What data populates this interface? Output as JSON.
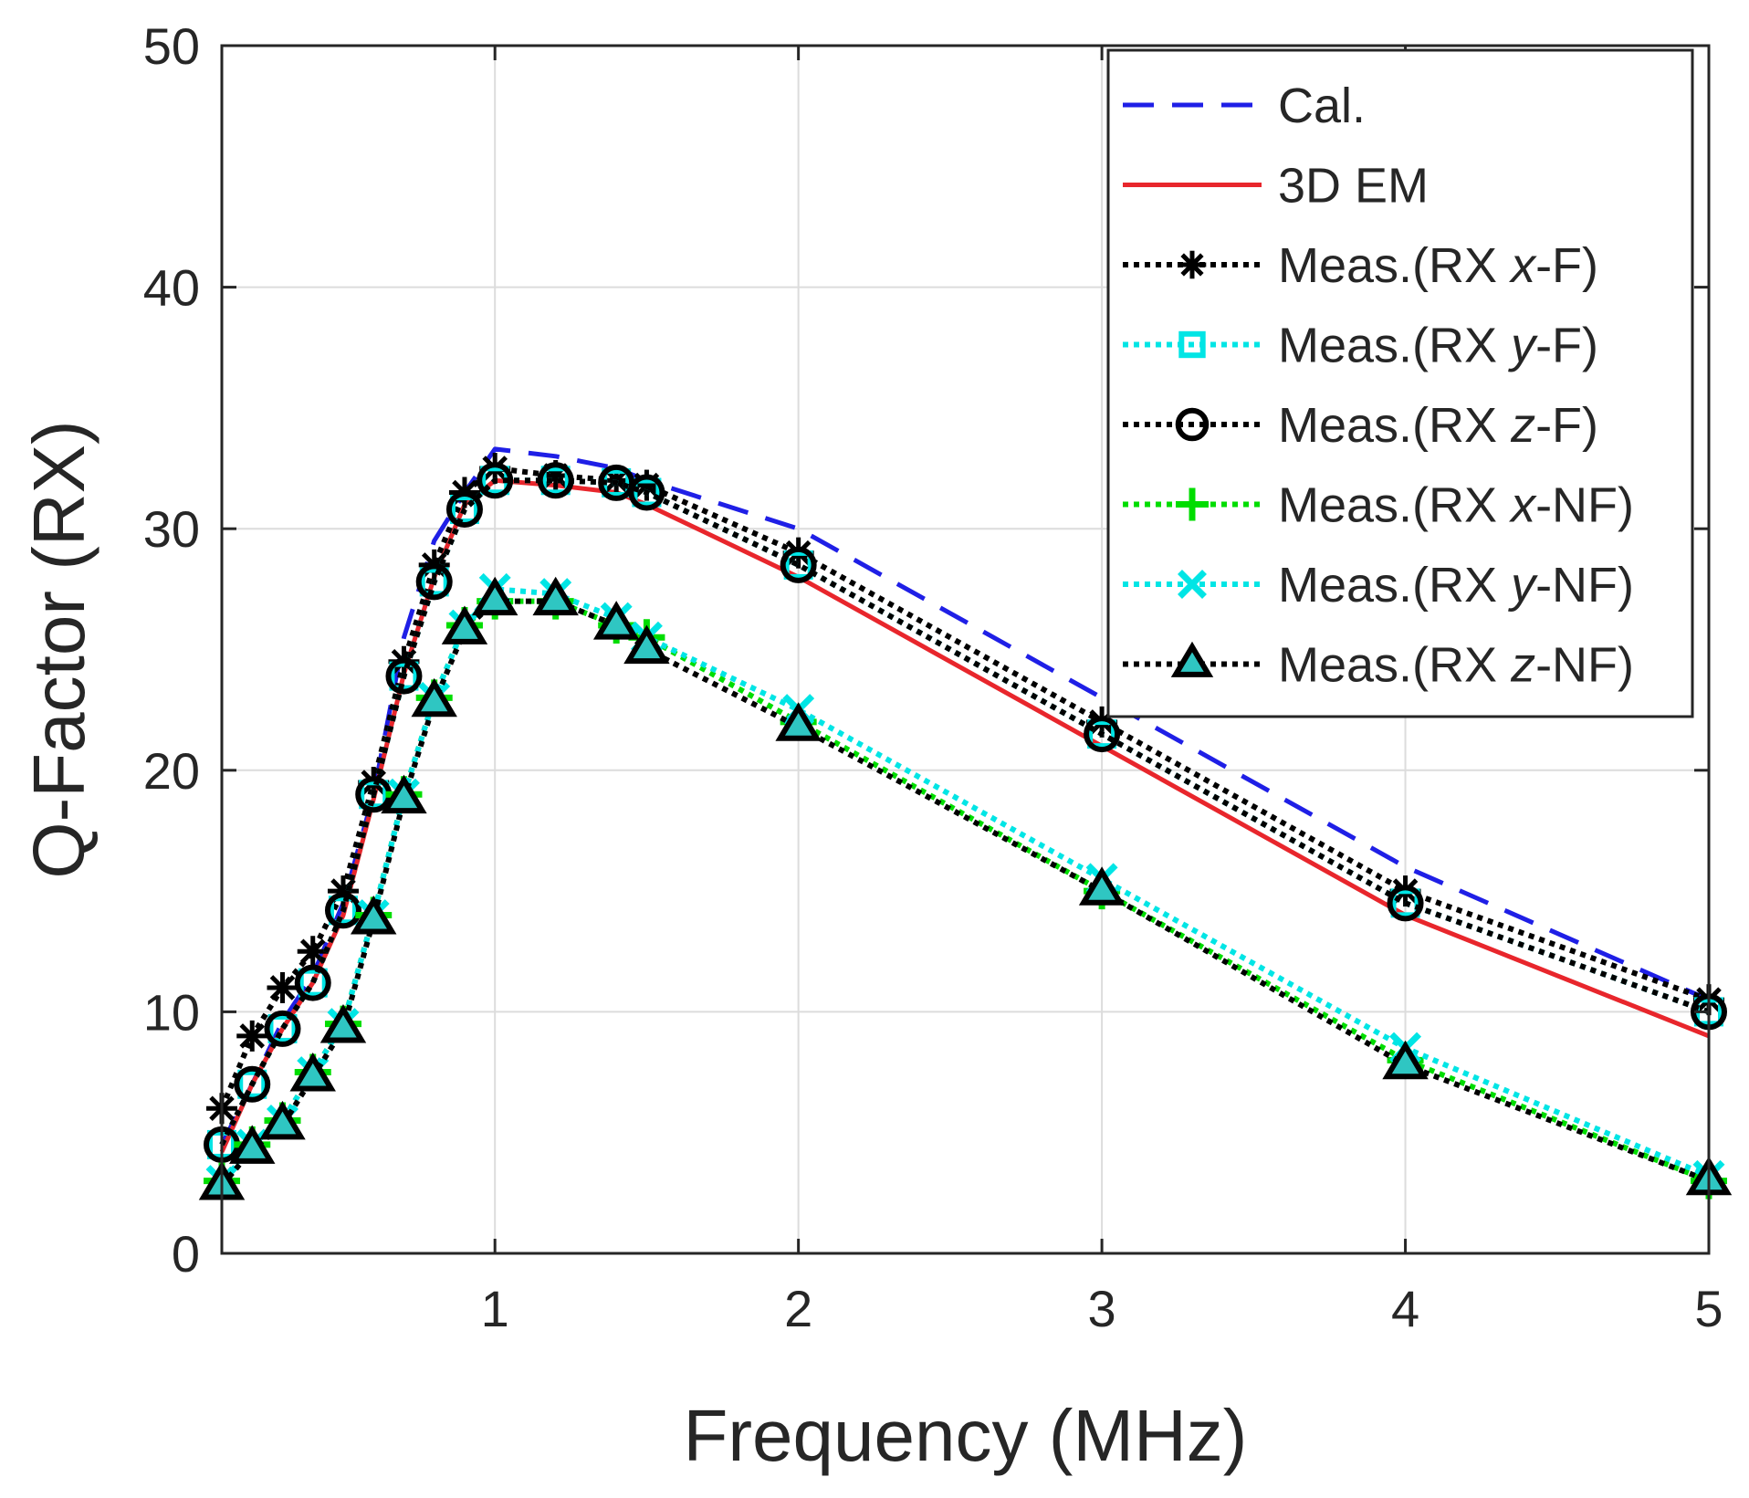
{
  "chart_data": {
    "type": "line",
    "title": "",
    "xlabel": "Frequency (MHz)",
    "ylabel": "Q-Factor (RX)",
    "xlim": [
      0.1,
      5
    ],
    "ylim": [
      0,
      50
    ],
    "xticks": [
      1,
      2,
      3,
      4,
      5
    ],
    "yticks": [
      0,
      10,
      20,
      30,
      40,
      50
    ],
    "grid": true,
    "legend_position": "top-right",
    "series": [
      {
        "name": "Cal.",
        "label_parts": [
          "Cal."
        ],
        "color": "#1f1fe6",
        "style": "dashed",
        "marker": "none",
        "x": [
          0.1,
          0.2,
          0.3,
          0.4,
          0.5,
          0.6,
          0.7,
          0.8,
          0.9,
          1.0,
          1.2,
          1.4,
          1.5,
          2,
          3,
          4,
          5
        ],
        "y": [
          4.5,
          7.0,
          9.6,
          11.5,
          14.5,
          19.0,
          25.5,
          29.5,
          31.5,
          33.3,
          33.0,
          32.5,
          32.0,
          30.0,
          23.0,
          16.0,
          10.5
        ]
      },
      {
        "name": "3D EM",
        "label_parts": [
          "3D EM"
        ],
        "color": "#e8262c",
        "style": "solid",
        "marker": "none",
        "x": [
          0.1,
          0.2,
          0.3,
          0.4,
          0.5,
          0.6,
          0.7,
          0.8,
          0.9,
          1.0,
          1.2,
          1.4,
          1.5,
          2,
          3,
          4,
          5
        ],
        "y": [
          4.2,
          7.0,
          9.3,
          11.2,
          14.0,
          18.8,
          24.0,
          28.0,
          31.0,
          32.0,
          31.8,
          31.5,
          31.0,
          28.0,
          21.0,
          14.0,
          9.0
        ]
      },
      {
        "name": "Meas.(RX x-F)",
        "label_parts": [
          "Meas.(RX ",
          "x",
          "-F)"
        ],
        "color": "#000000",
        "style": "dotted",
        "marker": "star",
        "x": [
          0.1,
          0.2,
          0.3,
          0.4,
          0.5,
          0.6,
          0.7,
          0.8,
          0.9,
          1.0,
          1.2,
          1.4,
          1.5,
          2,
          3,
          4,
          5
        ],
        "y": [
          6.0,
          9.0,
          11.0,
          12.5,
          15.0,
          19.5,
          24.5,
          28.5,
          31.5,
          32.5,
          32.2,
          32.0,
          31.8,
          29.0,
          22.0,
          15.0,
          10.5
        ]
      },
      {
        "name": "Meas.(RX y-F)",
        "label_parts": [
          "Meas.(RX ",
          "y",
          "-F)"
        ],
        "color": "#00e5e5",
        "style": "dotted",
        "marker": "square",
        "x": [
          0.1,
          0.2,
          0.3,
          0.4,
          0.5,
          0.6,
          0.7,
          0.8,
          0.9,
          1.0,
          1.2,
          1.4,
          1.5,
          2,
          3,
          4,
          5
        ],
        "y": [
          4.5,
          7.0,
          9.3,
          11.2,
          14.2,
          19.0,
          23.9,
          27.8,
          30.8,
          32.0,
          32.0,
          31.9,
          31.5,
          28.5,
          21.5,
          14.5,
          10.0
        ]
      },
      {
        "name": "Meas.(RX z-F)",
        "label_parts": [
          "Meas.(RX ",
          "z",
          "-F)"
        ],
        "color": "#000000",
        "style": "dotted",
        "marker": "circle",
        "x": [
          0.1,
          0.2,
          0.3,
          0.4,
          0.5,
          0.6,
          0.7,
          0.8,
          0.9,
          1.0,
          1.2,
          1.4,
          1.5,
          2,
          3,
          4,
          5
        ],
        "y": [
          4.5,
          7.0,
          9.3,
          11.2,
          14.2,
          19.0,
          23.9,
          27.8,
          30.8,
          32.0,
          32.0,
          31.9,
          31.5,
          28.5,
          21.5,
          14.5,
          10.0
        ]
      },
      {
        "name": "Meas.(RX x-NF)",
        "label_parts": [
          "Meas.(RX ",
          "x",
          "-NF)"
        ],
        "color": "#00dd00",
        "style": "dotted",
        "marker": "plus",
        "x": [
          0.1,
          0.2,
          0.3,
          0.4,
          0.5,
          0.6,
          0.7,
          0.8,
          0.9,
          1.0,
          1.2,
          1.4,
          1.5,
          2,
          3,
          4,
          5
        ],
        "y": [
          3.0,
          4.5,
          5.5,
          7.5,
          9.5,
          14.0,
          19.0,
          23.0,
          26.0,
          27.0,
          27.0,
          26.0,
          25.5,
          22.0,
          15.0,
          8.0,
          3.0
        ]
      },
      {
        "name": "Meas.(RX y-NF)",
        "label_parts": [
          "Meas.(RX ",
          "y",
          "-NF)"
        ],
        "color": "#00e5e5",
        "style": "dotted",
        "marker": "x",
        "x": [
          0.1,
          0.2,
          0.3,
          0.4,
          0.5,
          0.6,
          0.7,
          0.8,
          0.9,
          1.0,
          1.2,
          1.4,
          1.5,
          2,
          3,
          4,
          5
        ],
        "y": [
          3.0,
          4.5,
          5.5,
          7.5,
          9.5,
          14.0,
          19.0,
          23.0,
          26.0,
          27.5,
          27.3,
          26.3,
          25.5,
          22.5,
          15.5,
          8.5,
          3.2
        ]
      },
      {
        "name": "Meas.(RX z-NF)",
        "label_parts": [
          "Meas.(RX ",
          "z",
          "-NF)"
        ],
        "color": "#000000",
        "style": "dotted",
        "marker": "triangle",
        "x": [
          0.1,
          0.2,
          0.3,
          0.4,
          0.5,
          0.6,
          0.7,
          0.8,
          0.9,
          1.0,
          1.2,
          1.4,
          1.5,
          2,
          3,
          4,
          5
        ],
        "y": [
          2.8,
          4.3,
          5.3,
          7.3,
          9.3,
          13.8,
          18.8,
          22.8,
          25.8,
          27.0,
          27.0,
          26.0,
          25.0,
          21.8,
          15.0,
          7.8,
          3.0
        ]
      }
    ]
  }
}
